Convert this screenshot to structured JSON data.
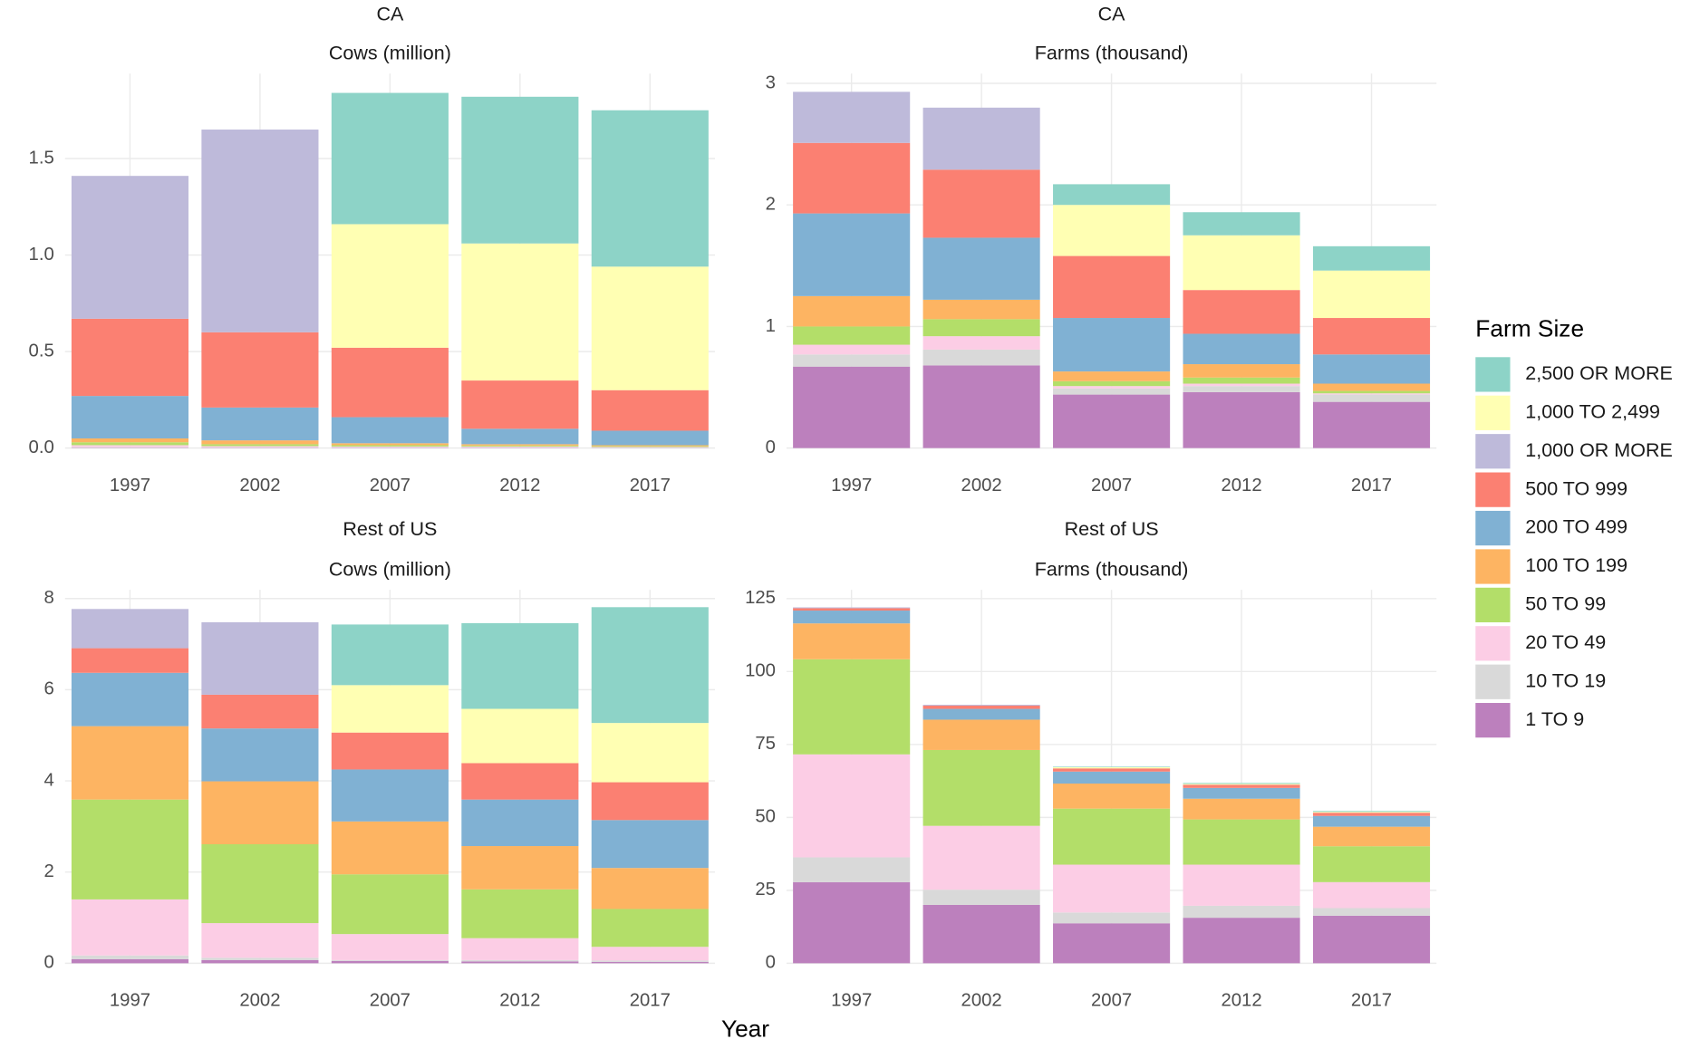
{
  "xlabel": "Year",
  "legend_title": "Farm Size",
  "chart_data": [
    {
      "type": "bar",
      "title": "CA",
      "subtitle": "Cows (million)",
      "categories": [
        "1997",
        "2002",
        "2007",
        "2012",
        "2017"
      ],
      "ylim": [
        0,
        1.94
      ],
      "yticks": [
        {
          "value": 0,
          "label": "0.0"
        },
        0.5,
        {
          "value": 1,
          "label": "1.0"
        },
        1.5
      ],
      "grid": true,
      "series": [
        {
          "name": "2,500 OR MORE",
          "color": "#8dd3c7",
          "values": [
            null,
            null,
            0.68,
            0.76,
            0.81
          ]
        },
        {
          "name": "1,000 TO 2,499",
          "color": "#ffffb3",
          "values": [
            null,
            null,
            0.64,
            0.71,
            0.64
          ]
        },
        {
          "name": "1,000 OR MORE",
          "color": "#bebada",
          "values": [
            0.74,
            1.05,
            null,
            null,
            null
          ]
        },
        {
          "name": "500 TO 999",
          "color": "#fb8072",
          "values": [
            0.4,
            0.39,
            0.36,
            0.25,
            0.21
          ]
        },
        {
          "name": "200 TO 499",
          "color": "#80b1d3",
          "values": [
            0.22,
            0.17,
            0.135,
            0.08,
            0.075
          ]
        },
        {
          "name": "100 TO 199",
          "color": "#fdb462",
          "values": [
            0.02,
            0.02,
            0.01,
            0.007,
            0.005
          ]
        },
        {
          "name": "50 TO 99",
          "color": "#b3de69",
          "values": [
            0.015,
            0.01,
            0.007,
            0.005,
            0.004
          ]
        },
        {
          "name": "20 TO 49",
          "color": "#fccde5",
          "values": [
            0.01,
            0.006,
            0.004,
            0.004,
            0.003
          ]
        },
        {
          "name": "10 TO 19",
          "color": "#d9d9d9",
          "values": [
            0.003,
            0.002,
            0.002,
            0.002,
            0.002
          ]
        },
        {
          "name": "1 TO 9",
          "color": "#bc80bd",
          "values": [
            0.002,
            0.002,
            0.002,
            0.002,
            0.001
          ]
        }
      ]
    },
    {
      "type": "bar",
      "title": "CA",
      "subtitle": "Farms (thousand)",
      "categories": [
        "1997",
        "2002",
        "2007",
        "2012",
        "2017"
      ],
      "ylim": [
        0,
        3.08
      ],
      "yticks": [
        0,
        1,
        2,
        3
      ],
      "grid": true,
      "series": [
        {
          "name": "2,500 OR MORE",
          "color": "#8dd3c7",
          "values": [
            null,
            null,
            0.17,
            0.19,
            0.2
          ]
        },
        {
          "name": "1,000 TO 2,499",
          "color": "#ffffb3",
          "values": [
            null,
            null,
            0.42,
            0.45,
            0.39
          ]
        },
        {
          "name": "1,000 OR MORE",
          "color": "#bebada",
          "values": [
            0.42,
            0.51,
            null,
            null,
            null
          ]
        },
        {
          "name": "500 TO 999",
          "color": "#fb8072",
          "values": [
            0.58,
            0.56,
            0.51,
            0.36,
            0.3
          ]
        },
        {
          "name": "200 TO 499",
          "color": "#80b1d3",
          "values": [
            0.68,
            0.51,
            0.44,
            0.25,
            0.24
          ]
        },
        {
          "name": "100 TO 199",
          "color": "#fdb462",
          "values": [
            0.25,
            0.16,
            0.08,
            0.11,
            0.06
          ]
        },
        {
          "name": "50 TO 99",
          "color": "#b3de69",
          "values": [
            0.15,
            0.14,
            0.04,
            0.05,
            0.02
          ]
        },
        {
          "name": "20 TO 49",
          "color": "#fccde5",
          "values": [
            0.08,
            0.11,
            0.02,
            0.02,
            0.01
          ]
        },
        {
          "name": "10 TO 19",
          "color": "#d9d9d9",
          "values": [
            0.1,
            0.13,
            0.05,
            0.05,
            0.06
          ]
        },
        {
          "name": "1 TO 9",
          "color": "#bc80bd",
          "values": [
            0.67,
            0.68,
            0.44,
            0.46,
            0.38
          ]
        }
      ]
    },
    {
      "type": "bar",
      "title": "Rest of US",
      "subtitle": "Cows (million)",
      "categories": [
        "1997",
        "2002",
        "2007",
        "2012",
        "2017"
      ],
      "ylim": [
        0,
        8.19
      ],
      "yticks": [
        0,
        2,
        4,
        6,
        8
      ],
      "grid": true,
      "series": [
        {
          "name": "2,500 OR MORE",
          "color": "#8dd3c7",
          "values": [
            null,
            null,
            1.33,
            1.88,
            2.54
          ]
        },
        {
          "name": "1,000 TO 2,499",
          "color": "#ffffb3",
          "values": [
            null,
            null,
            1.04,
            1.19,
            1.3
          ]
        },
        {
          "name": "1,000 OR MORE",
          "color": "#bebada",
          "values": [
            0.86,
            1.59,
            null,
            null,
            null
          ]
        },
        {
          "name": "500 TO 999",
          "color": "#fb8072",
          "values": [
            0.54,
            0.74,
            0.81,
            0.8,
            0.83
          ]
        },
        {
          "name": "200 TO 499",
          "color": "#80b1d3",
          "values": [
            1.17,
            1.16,
            1.14,
            1.02,
            1.05
          ]
        },
        {
          "name": "100 TO 199",
          "color": "#fdb462",
          "values": [
            1.61,
            1.38,
            1.16,
            0.95,
            0.9
          ]
        },
        {
          "name": "50 TO 99",
          "color": "#b3de69",
          "values": [
            2.19,
            1.73,
            1.31,
            1.07,
            0.83
          ]
        },
        {
          "name": "20 TO 49",
          "color": "#fccde5",
          "values": [
            1.23,
            0.76,
            0.57,
            0.48,
            0.3
          ]
        },
        {
          "name": "10 TO 19",
          "color": "#d9d9d9",
          "values": [
            0.08,
            0.05,
            0.02,
            0.03,
            0.03
          ]
        },
        {
          "name": "1 TO 9",
          "color": "#bc80bd",
          "values": [
            0.09,
            0.07,
            0.05,
            0.04,
            0.03
          ]
        }
      ]
    },
    {
      "type": "bar",
      "title": "Rest of US",
      "subtitle": "Farms (thousand)",
      "categories": [
        "1997",
        "2002",
        "2007",
        "2012",
        "2017"
      ],
      "ylim": [
        0,
        128
      ],
      "yticks": [
        0,
        25,
        50,
        75,
        100,
        125
      ],
      "grid": true,
      "series": [
        {
          "name": "2,500 OR MORE",
          "color": "#8dd3c7",
          "values": [
            null,
            null,
            0.2,
            0.3,
            0.3
          ]
        },
        {
          "name": "1,000 TO 2,499",
          "color": "#ffffb3",
          "values": [
            null,
            null,
            0.4,
            0.3,
            0.3
          ]
        },
        {
          "name": "1,000 OR MORE",
          "color": "#bebada",
          "values": [
            0.3,
            0.3,
            null,
            null,
            null
          ]
        },
        {
          "name": "500 TO 999",
          "color": "#fb8072",
          "values": [
            0.8,
            1.1,
            1.1,
            1.1,
            1.1
          ]
        },
        {
          "name": "200 TO 499",
          "color": "#80b1d3",
          "values": [
            4.4,
            3.7,
            4.1,
            3.7,
            3.7
          ]
        },
        {
          "name": "100 TO 199",
          "color": "#fdb462",
          "values": [
            12.3,
            10.4,
            8.6,
            7.1,
            6.7
          ]
        },
        {
          "name": "50 TO 99",
          "color": "#b3de69",
          "values": [
            32.6,
            26.0,
            19.2,
            15.5,
            12.3
          ]
        },
        {
          "name": "20 TO 49",
          "color": "#fccde5",
          "values": [
            35.3,
            21.9,
            16.4,
            14.1,
            8.9
          ]
        },
        {
          "name": "10 TO 19",
          "color": "#d9d9d9",
          "values": [
            8.5,
            5.2,
            3.7,
            4.1,
            2.6
          ]
        },
        {
          "name": "1 TO 9",
          "color": "#bc80bd",
          "values": [
            27.8,
            20.0,
            13.7,
            15.6,
            16.3
          ]
        }
      ]
    }
  ]
}
